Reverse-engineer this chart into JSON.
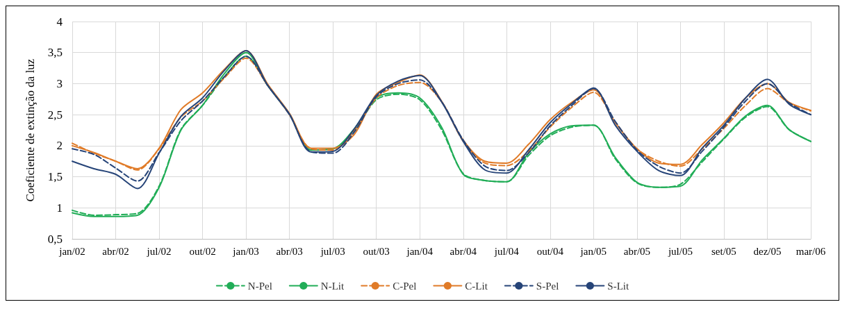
{
  "chart_data": {
    "type": "line",
    "ylabel": "Coeficiente de extinção da luz",
    "categories": [
      "jan/02",
      null,
      "abr/02",
      null,
      "jul/02",
      null,
      "out/02",
      null,
      "jan/03",
      null,
      "abr/03",
      null,
      "jul/03",
      null,
      "out/03",
      null,
      "jan/04",
      null,
      "abr/04",
      null,
      "jul/04",
      null,
      "out/04",
      null,
      "jan/05",
      null,
      "abr/05",
      null,
      "jul/05",
      null,
      "set/05",
      null,
      "dez/05",
      null,
      "mar/06"
    ],
    "ylim": [
      0.5,
      4
    ],
    "yticks": [
      {
        "value": 0.5,
        "label": "0,5"
      },
      1,
      {
        "value": 1.5,
        "label": "1,5"
      },
      2,
      {
        "value": 2.5,
        "label": "2,5"
      },
      3,
      {
        "value": 3.5,
        "label": "3,5"
      },
      4
    ],
    "grid": true,
    "legend": "bottom",
    "marker": "none",
    "series": [
      {
        "name": "N-Pel",
        "color": "#21ad57",
        "line_style": "dashed",
        "values": [
          0.96,
          0.88,
          0.89,
          0.91,
          1.35,
          2.26,
          2.65,
          3.11,
          3.44,
          2.97,
          2.51,
          1.93,
          1.95,
          2.25,
          2.74,
          2.83,
          2.74,
          2.26,
          1.55,
          1.44,
          1.42,
          1.84,
          2.16,
          2.3,
          2.33,
          1.79,
          1.4,
          1.33,
          1.38,
          1.74,
          2.11,
          2.46,
          2.63,
          2.26,
          2.07
        ]
      },
      {
        "name": "N-Lit",
        "color": "#21ad57",
        "line_style": "solid",
        "values": [
          0.92,
          0.86,
          0.86,
          0.88,
          1.33,
          2.25,
          2.65,
          3.16,
          3.5,
          2.97,
          2.51,
          1.93,
          1.95,
          2.28,
          2.77,
          2.85,
          2.77,
          2.3,
          1.54,
          1.44,
          1.42,
          1.88,
          2.19,
          2.32,
          2.33,
          1.81,
          1.41,
          1.33,
          1.35,
          1.77,
          2.12,
          2.48,
          2.65,
          2.26,
          2.07
        ]
      },
      {
        "name": "C-Pel",
        "color": "#e07b28",
        "line_style": "dashed",
        "values": [
          2.04,
          1.88,
          1.75,
          1.61,
          1.95,
          2.46,
          2.72,
          3.09,
          3.41,
          2.97,
          2.5,
          1.95,
          1.93,
          2.25,
          2.77,
          2.97,
          3.02,
          2.71,
          2.07,
          1.72,
          1.68,
          1.91,
          2.3,
          2.62,
          2.86,
          2.38,
          1.95,
          1.75,
          1.67,
          1.95,
          2.28,
          2.65,
          2.92,
          2.69,
          2.56
        ]
      },
      {
        "name": "C-Lit",
        "color": "#e07b28",
        "line_style": "solid",
        "values": [
          2.0,
          1.89,
          1.75,
          1.63,
          1.96,
          2.58,
          2.85,
          3.23,
          3.53,
          2.99,
          2.52,
          1.96,
          1.96,
          2.19,
          2.83,
          3.02,
          3.14,
          2.72,
          2.09,
          1.75,
          1.72,
          2.02,
          2.42,
          2.7,
          2.9,
          2.37,
          1.95,
          1.72,
          1.7,
          2.02,
          2.37,
          2.77,
          3.0,
          2.7,
          2.57
        ]
      },
      {
        "name": "S-Pel",
        "color": "#264478",
        "line_style": "dashed",
        "values": [
          1.95,
          1.86,
          1.64,
          1.43,
          1.89,
          2.4,
          2.72,
          3.11,
          3.44,
          2.97,
          2.5,
          1.9,
          1.88,
          2.23,
          2.79,
          3.0,
          3.06,
          2.71,
          2.09,
          1.67,
          1.6,
          1.88,
          2.32,
          2.65,
          2.92,
          2.39,
          1.93,
          1.67,
          1.56,
          1.91,
          2.3,
          2.72,
          3.0,
          2.69,
          2.5
        ]
      },
      {
        "name": "S-Lit",
        "color": "#264478",
        "line_style": "solid",
        "values": [
          1.75,
          1.63,
          1.54,
          1.31,
          1.88,
          2.47,
          2.77,
          3.21,
          3.53,
          2.97,
          2.51,
          1.9,
          1.91,
          2.28,
          2.81,
          3.04,
          3.13,
          2.71,
          2.07,
          1.61,
          1.56,
          1.93,
          2.37,
          2.68,
          2.93,
          2.33,
          1.91,
          1.6,
          1.52,
          1.96,
          2.33,
          2.77,
          3.07,
          2.67,
          2.5
        ]
      }
    ]
  }
}
